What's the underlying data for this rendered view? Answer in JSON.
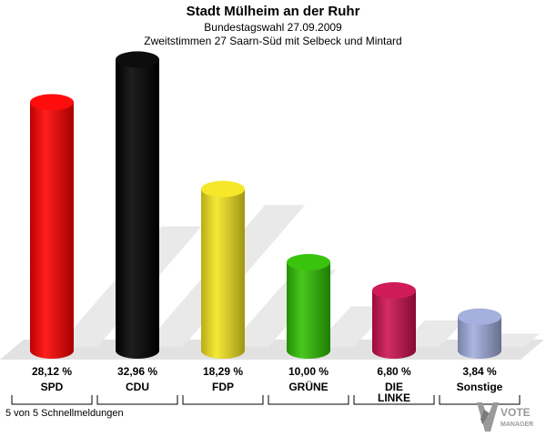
{
  "header": {
    "title": "Stadt Mülheim an der Ruhr",
    "subtitle": "Bundestagswahl 27.09.2009",
    "subtitle2": "Zweitstimmen 27 Saarn-Süd mit Selbeck und Mintard"
  },
  "footer": {
    "note": "5 von 5 Schnellmeldungen",
    "logo_line1": "VOTE",
    "logo_line2": "MANAGER"
  },
  "chart_data": {
    "type": "bar",
    "categories": [
      "SPD",
      "CDU",
      "FDP",
      "GRÜNE",
      "DIE LINKE",
      "Sonstige"
    ],
    "values": [
      28.12,
      32.96,
      18.29,
      10.0,
      6.8,
      3.84
    ],
    "value_labels": [
      "28,12 %",
      "32,96 %",
      "18,29 %",
      "10,00 %",
      "6,80 %",
      "3,84 %"
    ],
    "colors": [
      "#ff0000",
      "#000000",
      "#f5e61e",
      "#2fc000",
      "#cc1050",
      "#a0acdc"
    ],
    "ylim": [
      0,
      33
    ]
  }
}
